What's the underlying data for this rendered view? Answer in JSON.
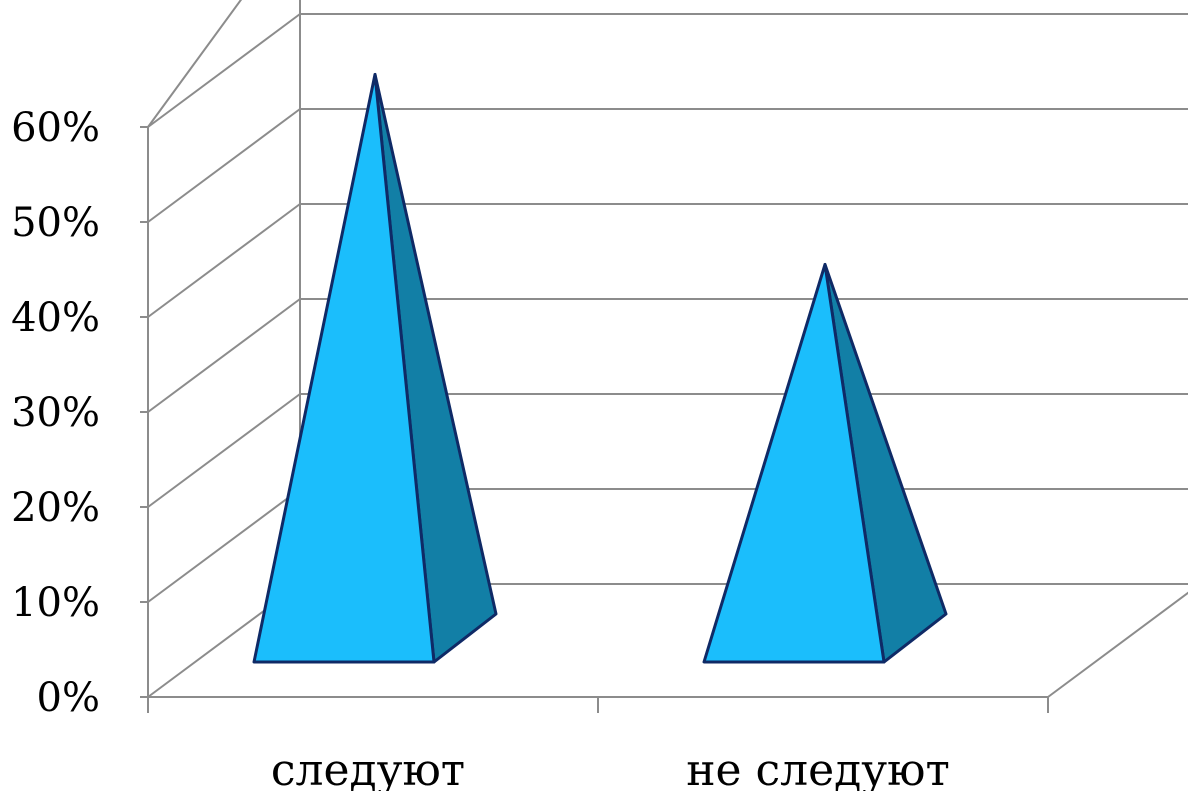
{
  "chart_data": {
    "type": "bar",
    "shape": "pyramid-3d",
    "title": "",
    "xlabel": "",
    "ylabel": "",
    "ylim": [
      0,
      60
    ],
    "y_ticks": [
      0,
      10,
      20,
      30,
      40,
      50,
      60
    ],
    "y_tick_labels": [
      "0%",
      "10%",
      "20%",
      "30%",
      "40%",
      "50%",
      "60%"
    ],
    "grid": true,
    "categories": [
      "следуют",
      "не следуют"
    ],
    "values": [
      62,
      42
    ],
    "colors": {
      "front_face": "#1bbefc",
      "side_face": "#127fa6",
      "outline": "#0f2a66",
      "grid": "#8c8c8c"
    }
  }
}
